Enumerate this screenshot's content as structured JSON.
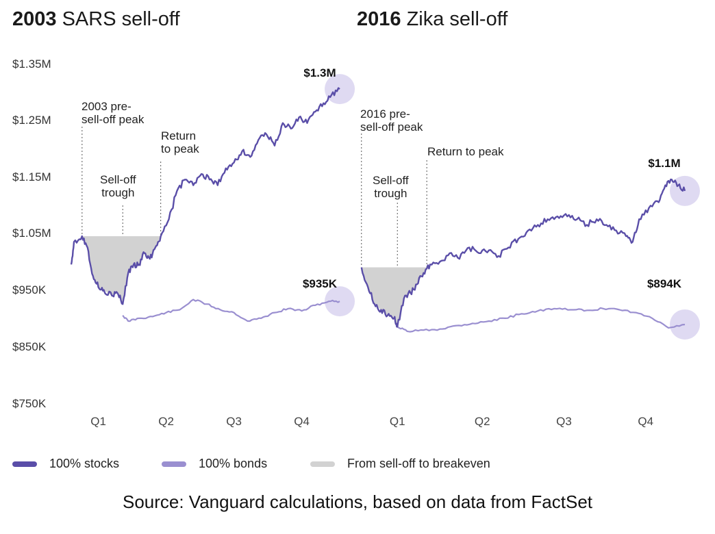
{
  "titles": {
    "left": {
      "year": "2003",
      "rest": "SARS sell-off"
    },
    "right": {
      "year": "2016",
      "rest": "Zika sell-off"
    }
  },
  "y_ticks": [
    "$1.35M",
    "$1.25M",
    "$1.15M",
    "$1.05M",
    "$950K",
    "$850K",
    "$750K"
  ],
  "legend": {
    "stocks": "100% stocks",
    "bonds": "100% bonds",
    "shade": "From sell-off to breakeven"
  },
  "source": "Source: Vanguard calculations, based on data from FactSet",
  "colors": {
    "stocks": "#5a4ea8",
    "bonds": "#9a8fd0",
    "shade": "#d2d2d2",
    "circle": "#d9d4f0"
  },
  "chart_data": [
    {
      "type": "line",
      "title": "2003 SARS sell-off",
      "xlabel": "",
      "ylabel": "",
      "ylim": [
        750000,
        1350000
      ],
      "x_ticks": [
        "Q1",
        "Q2",
        "Q3",
        "Q4"
      ],
      "x_tick_positions": [
        0.1,
        0.35,
        0.6,
        0.85
      ],
      "xlim": [
        0,
        1
      ],
      "annotations": {
        "peak": [
          "2003 pre-",
          "sell-off peak"
        ],
        "trough": [
          "Sell-off",
          "trough"
        ],
        "return": [
          "Return",
          "to peak"
        ]
      },
      "event_x": {
        "peak": 0.04,
        "trough": 0.19,
        "return": 0.33
      },
      "end_labels": {
        "stocks": "$1.3M",
        "bonds": "$935K"
      },
      "series": [
        {
          "name": "100% stocks",
          "points": [
            [
              0,
              1000000
            ],
            [
              0.01,
              1040000
            ],
            [
              0.04,
              1050000
            ],
            [
              0.06,
              1030000
            ],
            [
              0.08,
              980000
            ],
            [
              0.1,
              960000
            ],
            [
              0.12,
              955000
            ],
            [
              0.15,
              945000
            ],
            [
              0.17,
              950000
            ],
            [
              0.19,
              930000
            ],
            [
              0.21,
              985000
            ],
            [
              0.23,
              1000000
            ],
            [
              0.25,
              1000000
            ],
            [
              0.27,
              1020000
            ],
            [
              0.29,
              1010000
            ],
            [
              0.31,
              1030000
            ],
            [
              0.33,
              1050000
            ],
            [
              0.36,
              1080000
            ],
            [
              0.39,
              1130000
            ],
            [
              0.42,
              1150000
            ],
            [
              0.45,
              1140000
            ],
            [
              0.48,
              1160000
            ],
            [
              0.51,
              1150000
            ],
            [
              0.54,
              1140000
            ],
            [
              0.57,
              1170000
            ],
            [
              0.6,
              1180000
            ],
            [
              0.63,
              1200000
            ],
            [
              0.66,
              1190000
            ],
            [
              0.69,
              1220000
            ],
            [
              0.72,
              1230000
            ],
            [
              0.75,
              1210000
            ],
            [
              0.78,
              1250000
            ],
            [
              0.81,
              1240000
            ],
            [
              0.84,
              1260000
            ],
            [
              0.87,
              1250000
            ],
            [
              0.9,
              1270000
            ],
            [
              0.93,
              1285000
            ],
            [
              0.96,
              1300000
            ],
            [
              0.99,
              1310000
            ]
          ]
        },
        {
          "name": "100% bonds",
          "points": [
            [
              0.19,
              910000
            ],
            [
              0.21,
              900000
            ],
            [
              0.25,
              905000
            ],
            [
              0.3,
              908000
            ],
            [
              0.35,
              915000
            ],
            [
              0.4,
              920000
            ],
            [
              0.45,
              938000
            ],
            [
              0.5,
              930000
            ],
            [
              0.55,
              920000
            ],
            [
              0.6,
              915000
            ],
            [
              0.65,
              900000
            ],
            [
              0.7,
              905000
            ],
            [
              0.75,
              915000
            ],
            [
              0.8,
              922000
            ],
            [
              0.85,
              918000
            ],
            [
              0.9,
              928000
            ],
            [
              0.95,
              935000
            ],
            [
              0.99,
              935000
            ]
          ]
        }
      ],
      "shade": {
        "from_x": 0.04,
        "to_x": 0.33,
        "level": 1050000
      }
    },
    {
      "type": "line",
      "title": "2016 Zika sell-off",
      "xlabel": "",
      "ylabel": "",
      "ylim": [
        750000,
        1350000
      ],
      "x_ticks": [
        "Q1",
        "Q2",
        "Q3",
        "Q4"
      ],
      "x_tick_positions": [
        0.12,
        0.38,
        0.63,
        0.88
      ],
      "xlim": [
        0,
        1
      ],
      "annotations": {
        "peak": [
          "2016 pre-",
          "sell-off peak"
        ],
        "trough": [
          "Sell-off",
          "trough"
        ],
        "return": [
          "Return to peak"
        ]
      },
      "event_x": {
        "peak": 0.01,
        "trough": 0.12,
        "return": 0.21
      },
      "end_labels": {
        "stocks": "$1.1M",
        "bonds": "$894K"
      },
      "series": [
        {
          "name": "100% stocks",
          "points": [
            [
              0.01,
              995000
            ],
            [
              0.03,
              960000
            ],
            [
              0.05,
              930000
            ],
            [
              0.07,
              920000
            ],
            [
              0.09,
              910000
            ],
            [
              0.11,
              905000
            ],
            [
              0.12,
              890000
            ],
            [
              0.14,
              940000
            ],
            [
              0.16,
              950000
            ],
            [
              0.18,
              965000
            ],
            [
              0.2,
              985000
            ],
            [
              0.22,
              1000000
            ],
            [
              0.25,
              1005000
            ],
            [
              0.28,
              1020000
            ],
            [
              0.31,
              1010000
            ],
            [
              0.34,
              1030000
            ],
            [
              0.37,
              1020000
            ],
            [
              0.4,
              1025000
            ],
            [
              0.43,
              1015000
            ],
            [
              0.46,
              1030000
            ],
            [
              0.49,
              1045000
            ],
            [
              0.52,
              1060000
            ],
            [
              0.55,
              1070000
            ],
            [
              0.58,
              1080000
            ],
            [
              0.61,
              1085000
            ],
            [
              0.64,
              1085000
            ],
            [
              0.67,
              1080000
            ],
            [
              0.7,
              1070000
            ],
            [
              0.73,
              1080000
            ],
            [
              0.76,
              1070000
            ],
            [
              0.79,
              1060000
            ],
            [
              0.82,
              1050000
            ],
            [
              0.84,
              1040000
            ],
            [
              0.86,
              1080000
            ],
            [
              0.89,
              1100000
            ],
            [
              0.92,
              1110000
            ],
            [
              0.94,
              1140000
            ],
            [
              0.96,
              1150000
            ],
            [
              0.98,
              1140000
            ],
            [
              1.0,
              1130000
            ]
          ]
        },
        {
          "name": "100% bonds",
          "points": [
            [
              0.12,
              890000
            ],
            [
              0.15,
              882000
            ],
            [
              0.2,
              884000
            ],
            [
              0.25,
              886000
            ],
            [
              0.3,
              892000
            ],
            [
              0.35,
              896000
            ],
            [
              0.4,
              900000
            ],
            [
              0.45,
              905000
            ],
            [
              0.5,
              913000
            ],
            [
              0.55,
              918000
            ],
            [
              0.6,
              922000
            ],
            [
              0.65,
              920000
            ],
            [
              0.7,
              919000
            ],
            [
              0.75,
              922000
            ],
            [
              0.8,
              920000
            ],
            [
              0.85,
              915000
            ],
            [
              0.9,
              905000
            ],
            [
              0.95,
              888000
            ],
            [
              1.0,
              894000
            ]
          ]
        }
      ],
      "shade": {
        "from_x": 0.01,
        "to_x": 0.21,
        "level": 995000
      }
    }
  ]
}
